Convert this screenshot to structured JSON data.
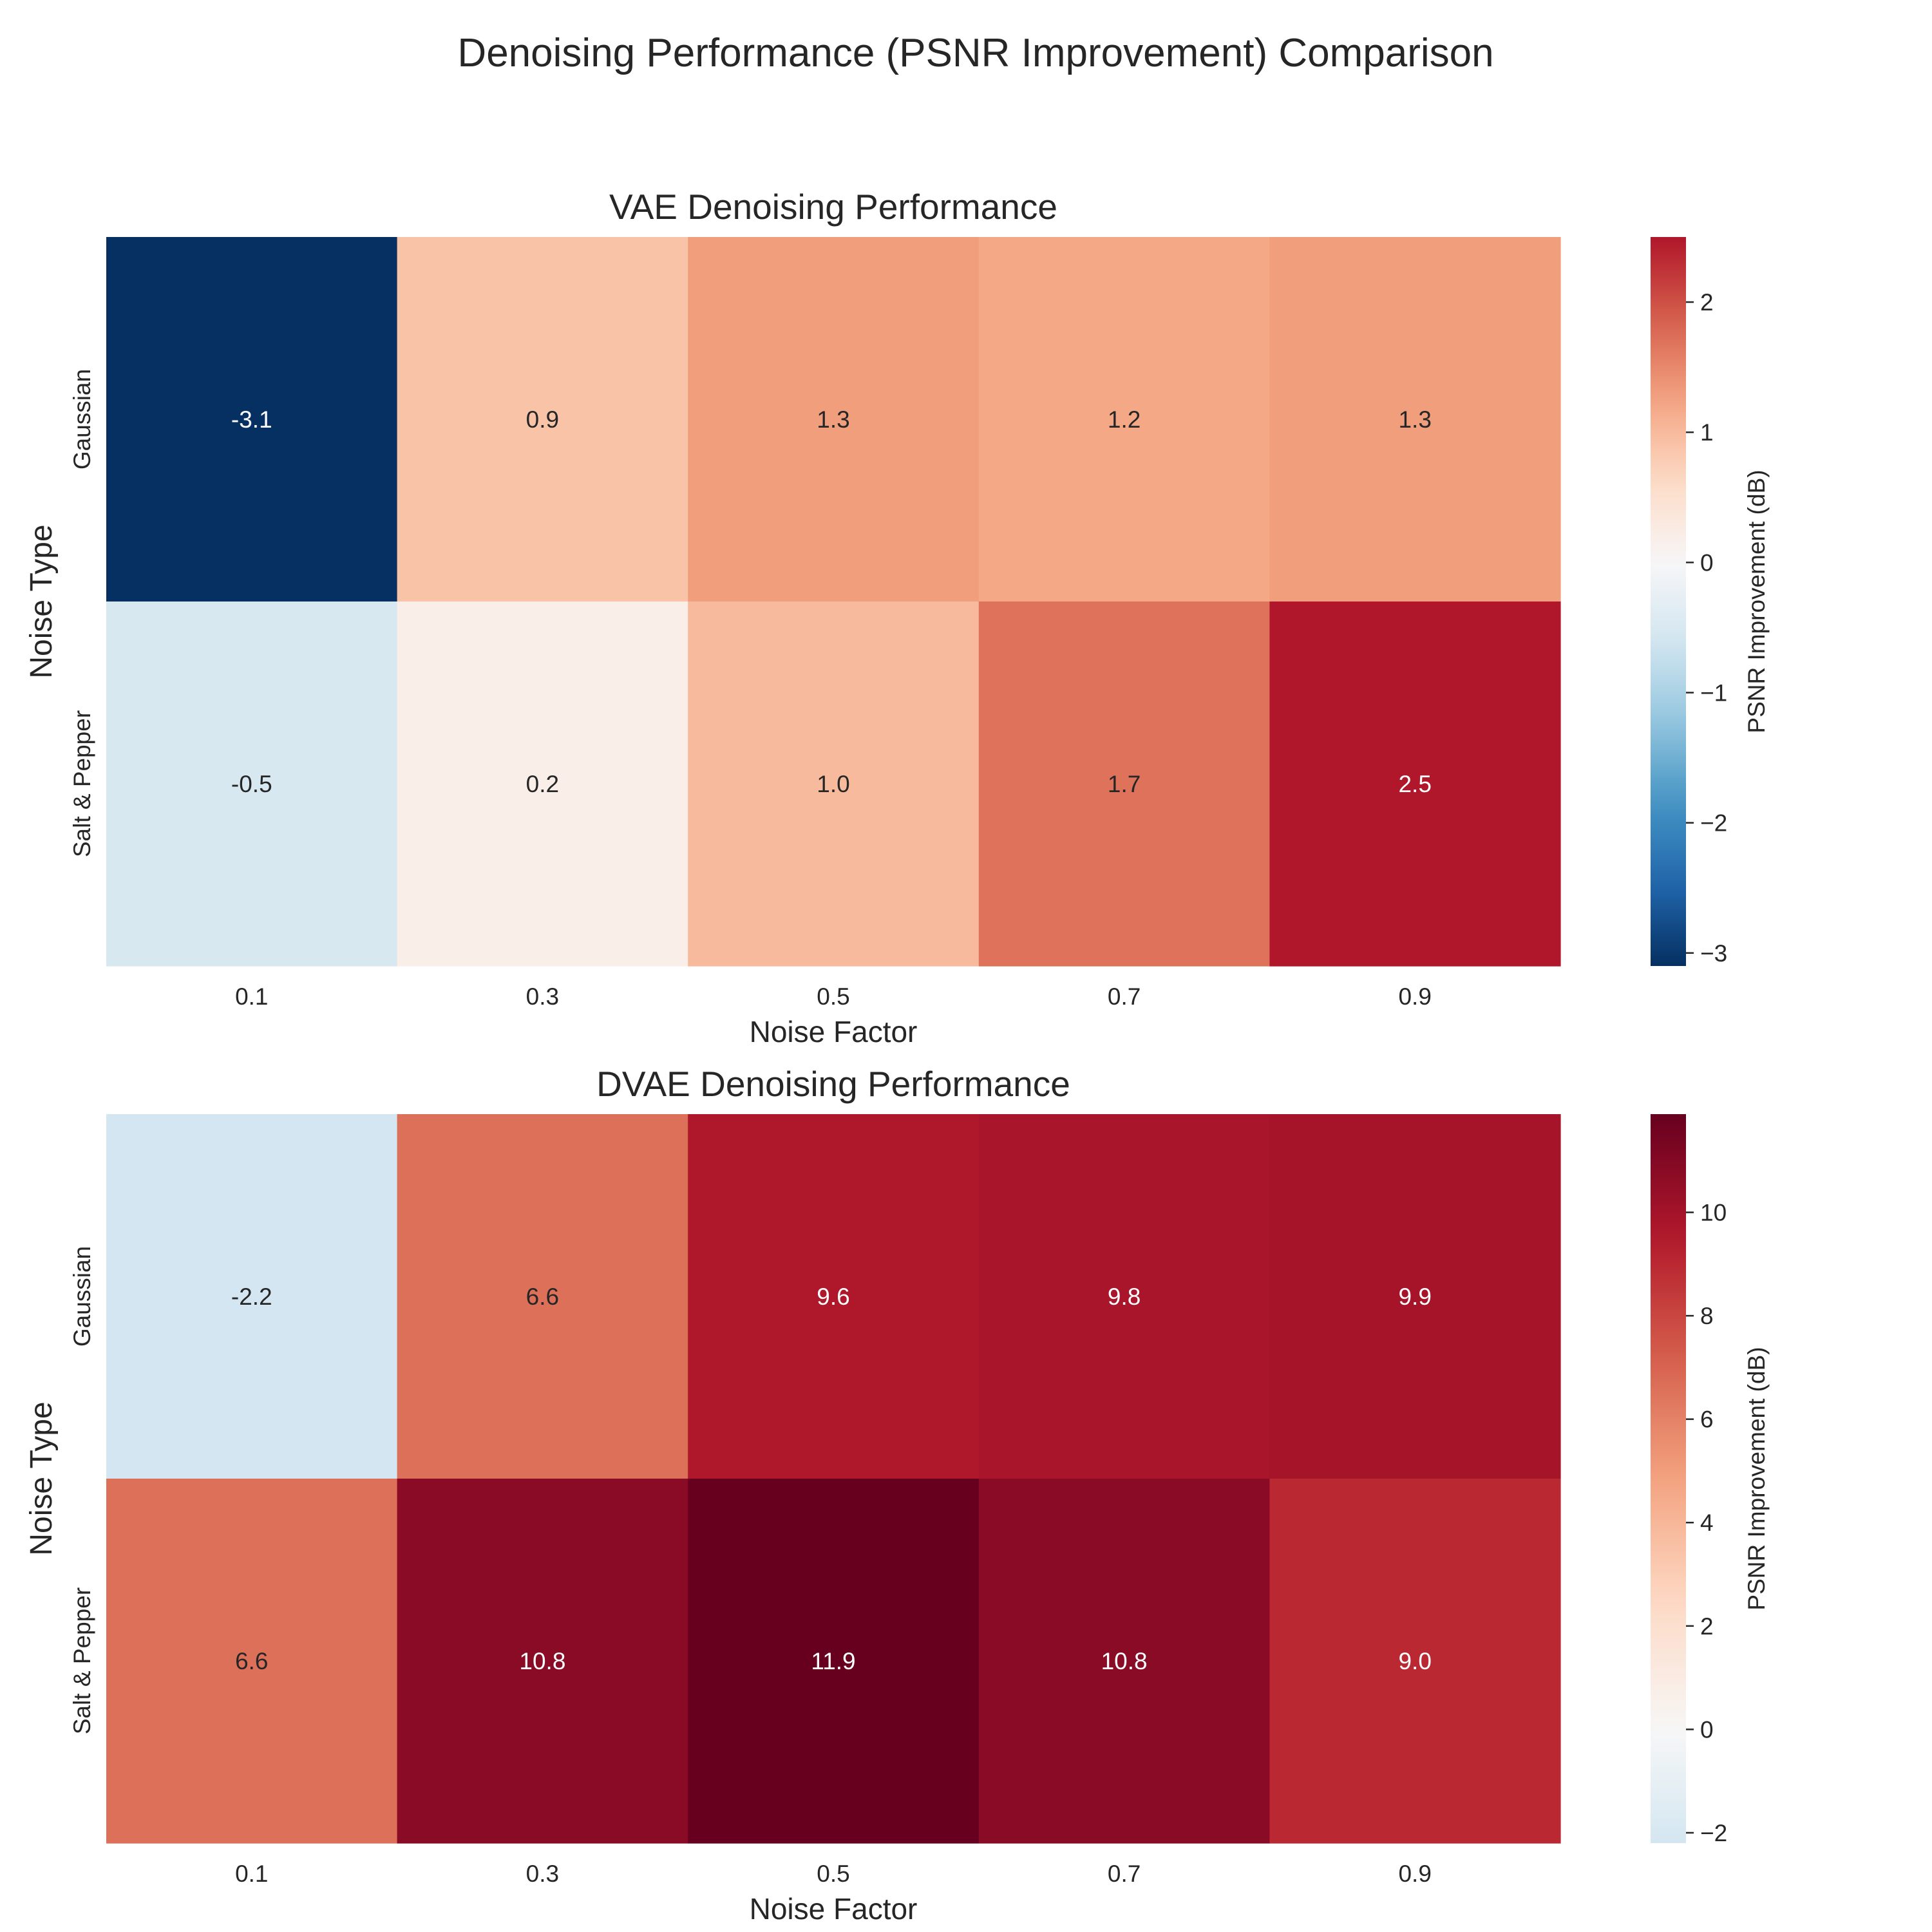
{
  "figure": {
    "title": "Denoising Performance (PSNR Improvement) Comparison"
  },
  "chart_data": [
    {
      "type": "heatmap",
      "title": "VAE Denoising Performance",
      "xlabel": "Noise Factor",
      "ylabel": "Noise Type",
      "x": [
        "0.1",
        "0.3",
        "0.5",
        "0.7",
        "0.9"
      ],
      "y": [
        "Gaussian",
        "Salt & Pepper"
      ],
      "values": [
        [
          -3.1,
          0.9,
          1.3,
          1.2,
          1.3
        ],
        [
          -0.5,
          0.2,
          1.0,
          1.7,
          2.5
        ]
      ],
      "value_format": "%.1f",
      "colormap": "RdBu_r",
      "colorbar": {
        "label": "PSNR Improvement (dB)",
        "range": [
          -3.1,
          2.5
        ],
        "center": 0,
        "ticks": [
          -3,
          -2,
          -1,
          0,
          1,
          2
        ],
        "tick_labels": [
          "−3",
          "−2",
          "−1",
          "0",
          "1",
          "2"
        ]
      }
    },
    {
      "type": "heatmap",
      "title": "DVAE Denoising Performance",
      "xlabel": "Noise Factor",
      "ylabel": "Noise Type",
      "x": [
        "0.1",
        "0.3",
        "0.5",
        "0.7",
        "0.9"
      ],
      "y": [
        "Gaussian",
        "Salt & Pepper"
      ],
      "values": [
        [
          -2.2,
          6.6,
          9.6,
          9.8,
          9.9
        ],
        [
          6.6,
          10.8,
          11.9,
          10.8,
          9.0
        ]
      ],
      "value_format": "%.1f",
      "colormap": "RdBu_r",
      "colorbar": {
        "label": "PSNR Improvement (dB)",
        "range": [
          -2.2,
          11.9
        ],
        "center": 0,
        "ticks": [
          -2,
          0,
          2,
          4,
          6,
          8,
          10
        ],
        "tick_labels": [
          "−2",
          "0",
          "2",
          "4",
          "6",
          "8",
          "10"
        ]
      }
    }
  ]
}
